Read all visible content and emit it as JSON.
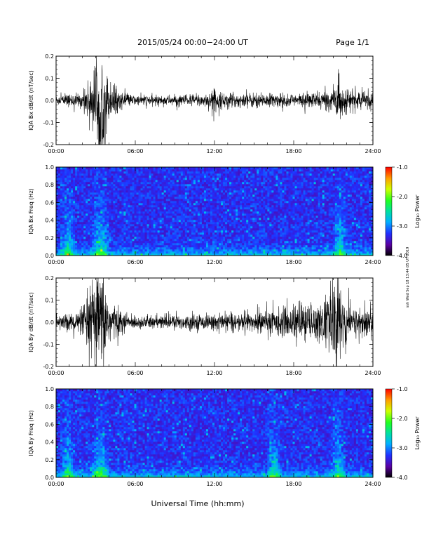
{
  "header": {
    "title": "2015/05/24  00:00−24:00 UT",
    "page": "Page 1/1"
  },
  "x_axis_title": "Universal Time (hh:mm)",
  "side_stamp": "ssh Wed Sep 18 13:44:05 UT 2019",
  "time_ticks": [
    "00:00",
    "06:00",
    "12:00",
    "18:00",
    "24:00"
  ],
  "colorbar": {
    "label": "Log₁₀ Power",
    "ticks": [
      "-1.0",
      "-2.0",
      "-3.0",
      "-4.0"
    ]
  },
  "chart_data": [
    {
      "type": "line",
      "title": "",
      "ylabel": "IQA Bx dB/dt (nT/sec)",
      "xlabel": "",
      "xlim": [
        0,
        24
      ],
      "ylim": [
        -0.2,
        0.2
      ],
      "yticks": [
        "0.2",
        "0.1",
        "0.0",
        "-0.1",
        "-0.2"
      ],
      "series": [
        {
          "values_envelope": [
            [
              0,
              0.02
            ],
            [
              1,
              0.025
            ],
            [
              2,
              0.03
            ],
            [
              2.8,
              0.12
            ],
            [
              3.2,
              0.2
            ],
            [
              3.6,
              0.2
            ],
            [
              4,
              0.08
            ],
            [
              5,
              0.03
            ],
            [
              6,
              0.02
            ],
            [
              9,
              0.02
            ],
            [
              11.5,
              0.03
            ],
            [
              12,
              0.05
            ],
            [
              12.5,
              0.03
            ],
            [
              15,
              0.03
            ],
            [
              18,
              0.025
            ],
            [
              21,
              0.04
            ],
            [
              21.3,
              0.12
            ],
            [
              21.6,
              0.05
            ],
            [
              24,
              0.03
            ]
          ]
        }
      ]
    },
    {
      "type": "heatmap",
      "title": "",
      "ylabel": "IQA Bx Freq (Hz)",
      "xlabel": "",
      "xlim": [
        0,
        24
      ],
      "ylim": [
        0,
        1.0
      ],
      "yticks": [
        "1.0",
        "0.8",
        "0.6",
        "0.4",
        "0.2",
        "0.0"
      ],
      "color_scale": "log10 power, -4.0 to -1.0",
      "activity_hours": [
        0.9,
        3.2,
        3.5,
        21.5
      ]
    },
    {
      "type": "line",
      "title": "",
      "ylabel": "IQA By dB/dt (nT/sec)",
      "xlabel": "",
      "xlim": [
        0,
        24
      ],
      "ylim": [
        -0.2,
        0.2
      ],
      "yticks": [
        "0.2",
        "0.1",
        "0.0",
        "-0.1",
        "-0.2"
      ],
      "series": [
        {
          "values_envelope": [
            [
              0,
              0.03
            ],
            [
              1,
              0.035
            ],
            [
              2,
              0.05
            ],
            [
              2.6,
              0.15
            ],
            [
              3.0,
              0.2
            ],
            [
              3.6,
              0.2
            ],
            [
              4,
              0.1
            ],
            [
              5,
              0.04
            ],
            [
              6,
              0.025
            ],
            [
              9,
              0.03
            ],
            [
              12,
              0.03
            ],
            [
              15,
              0.04
            ],
            [
              17.5,
              0.06
            ],
            [
              18.5,
              0.08
            ],
            [
              20,
              0.07
            ],
            [
              20.8,
              0.14
            ],
            [
              21.3,
              0.2
            ],
            [
              21.8,
              0.12
            ],
            [
              22.5,
              0.06
            ],
            [
              24,
              0.05
            ]
          ]
        }
      ]
    },
    {
      "type": "heatmap",
      "title": "",
      "ylabel": "IQA By Freq (Hz)",
      "xlabel": "",
      "xlim": [
        0,
        24
      ],
      "ylim": [
        0,
        1.0
      ],
      "yticks": [
        "1.0",
        "0.8",
        "0.6",
        "0.4",
        "0.2",
        "0.0"
      ],
      "color_scale": "log10 power, -4.0 to -1.0",
      "activity_hours": [
        0.9,
        3.2,
        3.5,
        16.5,
        21.4
      ]
    }
  ]
}
